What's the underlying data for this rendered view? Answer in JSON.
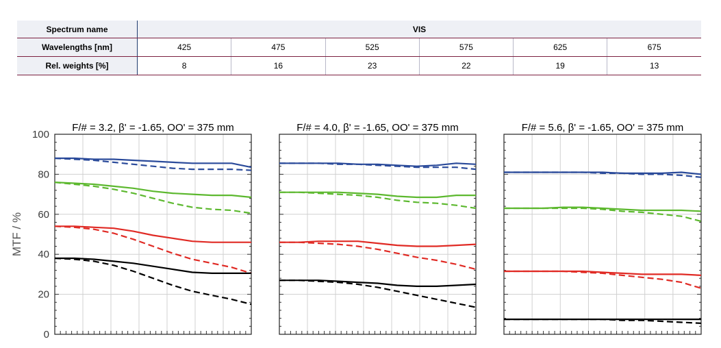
{
  "table": {
    "spectrum_label": "Spectrum name",
    "spectrum_value": "VIS",
    "wavelength_label": "Wavelengths [nm]",
    "weights_label": "Rel. weights [%]",
    "wavelengths": [
      "425",
      "475",
      "525",
      "575",
      "625",
      "675"
    ],
    "weights": [
      "8",
      "16",
      "23",
      "22",
      "19",
      "13"
    ]
  },
  "colors": {
    "blue": "#2a4a9a",
    "green": "#5cb82e",
    "red": "#e02a24",
    "black": "#000000"
  },
  "chart_data": [
    {
      "type": "line",
      "title": "F/# = 3.2, β' = -1.65, OO' = 375 mm",
      "ylabel": "MTF / %",
      "ylim": [
        0,
        100
      ],
      "yticks": [
        "0",
        "20",
        "40",
        "60",
        "80",
        "100"
      ],
      "xlim": [
        0,
        1
      ],
      "grid": true,
      "x": [
        0,
        0.1,
        0.2,
        0.3,
        0.4,
        0.5,
        0.6,
        0.7,
        0.8,
        0.9,
        1.0
      ],
      "series": [
        {
          "color": "blue",
          "style": "solid",
          "values": [
            88,
            88,
            87.5,
            87.5,
            87,
            86.5,
            86,
            85.5,
            85.5,
            85.5,
            83.5
          ]
        },
        {
          "color": "blue",
          "style": "dashed",
          "values": [
            88,
            87.5,
            87,
            86,
            85,
            84,
            83,
            82.5,
            82.5,
            82.5,
            82
          ]
        },
        {
          "color": "green",
          "style": "solid",
          "values": [
            76,
            75.5,
            75,
            74,
            73,
            71.5,
            70.5,
            70,
            69.5,
            69.5,
            68.5
          ]
        },
        {
          "color": "green",
          "style": "dashed",
          "values": [
            76,
            75,
            74,
            72.5,
            70.5,
            68,
            65.5,
            63.5,
            62.5,
            62,
            60.5
          ]
        },
        {
          "color": "red",
          "style": "solid",
          "values": [
            54,
            54,
            53.5,
            53,
            51.5,
            49.5,
            48,
            46.5,
            46,
            46,
            46
          ]
        },
        {
          "color": "red",
          "style": "dashed",
          "values": [
            54,
            53.5,
            52.5,
            50.5,
            47.5,
            44,
            40.5,
            37.5,
            35.5,
            33.5,
            30.5
          ]
        },
        {
          "color": "black",
          "style": "solid",
          "values": [
            38,
            38,
            37.5,
            36.5,
            35.5,
            34,
            32.5,
            31,
            30.5,
            30.5,
            30.5
          ]
        },
        {
          "color": "black",
          "style": "dashed",
          "values": [
            38,
            37.5,
            36.5,
            34.5,
            31.5,
            28,
            24.5,
            21.5,
            19.5,
            17.5,
            15
          ]
        }
      ]
    },
    {
      "type": "line",
      "title": "F/# = 4.0, β' = -1.65, OO' = 375 mm",
      "ylim": [
        0,
        100
      ],
      "xlim": [
        0,
        1
      ],
      "grid": true,
      "x": [
        0,
        0.1,
        0.2,
        0.3,
        0.4,
        0.5,
        0.6,
        0.7,
        0.8,
        0.9,
        1.0
      ],
      "series": [
        {
          "color": "blue",
          "style": "solid",
          "values": [
            85.5,
            85.5,
            85.5,
            85.5,
            85,
            85,
            84.5,
            84,
            84.5,
            85.5,
            85
          ]
        },
        {
          "color": "blue",
          "style": "dashed",
          "values": [
            85.5,
            85.5,
            85.5,
            85,
            85,
            84.5,
            84,
            83.5,
            83.5,
            83.5,
            82.5
          ]
        },
        {
          "color": "green",
          "style": "solid",
          "values": [
            71,
            71,
            71,
            71,
            70.5,
            70,
            69,
            68.5,
            68.5,
            69.5,
            69.5
          ]
        },
        {
          "color": "green",
          "style": "dashed",
          "values": [
            71,
            71,
            70.5,
            70,
            69.5,
            68.5,
            67,
            66,
            65.5,
            64.5,
            63
          ]
        },
        {
          "color": "red",
          "style": "solid",
          "values": [
            46,
            46,
            46.5,
            46.5,
            46.5,
            45.5,
            44.5,
            44,
            44,
            44.5,
            45
          ]
        },
        {
          "color": "red",
          "style": "dashed",
          "values": [
            46,
            46,
            45.5,
            45,
            44,
            42.5,
            40.5,
            38.5,
            37,
            35,
            32.5
          ]
        },
        {
          "color": "black",
          "style": "solid",
          "values": [
            27,
            27,
            27,
            26.5,
            26,
            25.5,
            24.5,
            24,
            24,
            24.5,
            25
          ]
        },
        {
          "color": "black",
          "style": "dashed",
          "values": [
            27,
            27,
            26.5,
            26,
            25,
            23.5,
            21.5,
            19.5,
            17.5,
            15.5,
            13.5
          ]
        }
      ]
    },
    {
      "type": "line",
      "title": "F/# = 5.6, β' = -1.65, OO' = 375 mm",
      "ylim": [
        0,
        100
      ],
      "xlim": [
        0,
        1
      ],
      "grid": true,
      "x": [
        0,
        0.1,
        0.2,
        0.3,
        0.4,
        0.5,
        0.6,
        0.7,
        0.8,
        0.9,
        1.0
      ],
      "series": [
        {
          "color": "blue",
          "style": "solid",
          "values": [
            81,
            81,
            81,
            81,
            81,
            81,
            80.5,
            80.5,
            80.5,
            81,
            80
          ]
        },
        {
          "color": "blue",
          "style": "dashed",
          "values": [
            81,
            81,
            81,
            81,
            81,
            80.5,
            80.5,
            80,
            80,
            79.5,
            78.5
          ]
        },
        {
          "color": "green",
          "style": "solid",
          "values": [
            63,
            63,
            63,
            63.5,
            63.5,
            63,
            62.5,
            62,
            62,
            62,
            61.5
          ]
        },
        {
          "color": "green",
          "style": "dashed",
          "values": [
            63,
            63,
            63,
            63,
            63,
            62.5,
            61.5,
            61,
            60,
            59,
            56.5
          ]
        },
        {
          "color": "red",
          "style": "solid",
          "values": [
            31.5,
            31.5,
            31.5,
            31.5,
            31.5,
            31,
            30.5,
            30,
            30,
            30,
            29.5
          ]
        },
        {
          "color": "red",
          "style": "dashed",
          "values": [
            31.5,
            31.5,
            31.5,
            31.5,
            31,
            30.5,
            29.5,
            28.5,
            27.5,
            26,
            23
          ]
        },
        {
          "color": "black",
          "style": "solid",
          "values": [
            7.5,
            7.5,
            7.5,
            7.5,
            7.5,
            7.5,
            7.5,
            7.5,
            7.5,
            7.5,
            7.5
          ]
        },
        {
          "color": "black",
          "style": "dashed",
          "values": [
            7.5,
            7.5,
            7.5,
            7.5,
            7.5,
            7.5,
            7,
            7,
            6.5,
            6,
            5.5
          ]
        }
      ]
    }
  ]
}
